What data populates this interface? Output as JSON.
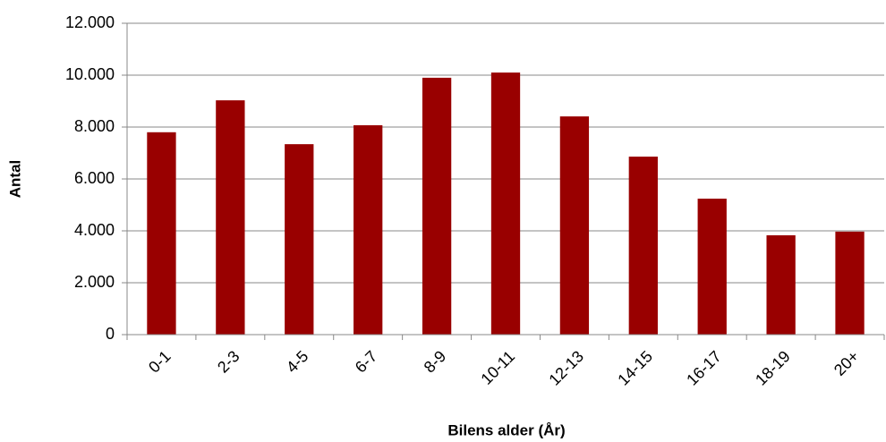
{
  "chart_data": {
    "type": "bar",
    "categories": [
      "0-1",
      "2-3",
      "4-5",
      "6-7",
      "8-9",
      "10-11",
      "12-13",
      "14-15",
      "16-17",
      "18-19",
      "20+"
    ],
    "values": [
      7800,
      9030,
      7340,
      8070,
      9900,
      10100,
      8410,
      6860,
      5240,
      3830,
      3970
    ],
    "color": "#990000",
    "ylim": [
      0,
      12000
    ],
    "yticks": [
      0,
      {
        "value": 2000,
        "label": "2.000"
      },
      {
        "value": 4000,
        "label": "4.000"
      },
      {
        "value": 6000,
        "label": "6.000"
      },
      {
        "value": 8000,
        "label": "8.000"
      },
      {
        "value": 10000,
        "label": "10.000"
      },
      {
        "value": 12000,
        "label": "12.000"
      }
    ],
    "grid": true,
    "xlabel": "Bilens alder (År)",
    "ylabel": "Antal"
  }
}
